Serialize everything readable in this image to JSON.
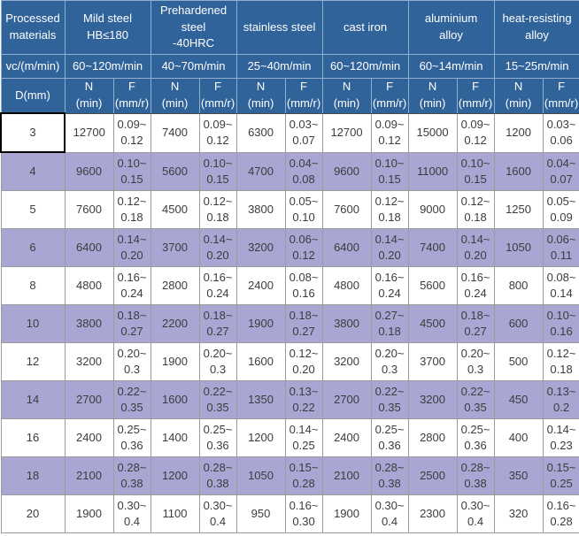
{
  "chart_data": {
    "type": "table",
    "corner": {
      "materials_label": "Processed\nmaterials",
      "vc_label": "vc/(m/min)",
      "d_label": "D(mm)"
    },
    "materials": [
      {
        "name": "Mild steel\nHB≤180",
        "vc": "60~120m/min",
        "n_label": "N\n(min)",
        "f_label": "F\n(mm/r)"
      },
      {
        "name": "Prehardened\nsteel\n-40HRC",
        "vc": "40~70m/min",
        "n_label": "N\n(min)",
        "f_label": "F\n(mm/r)"
      },
      {
        "name": "stainless steel",
        "vc": "25~40m/min",
        "n_label": "N\n(min)",
        "f_label": "F\n(mm/r)"
      },
      {
        "name": "cast iron",
        "vc": "60~120m/min",
        "n_label": "N\n(min)",
        "f_label": "F\n(mm/r)"
      },
      {
        "name": "aluminium\nalloy",
        "vc": "60~14m/min",
        "n_label": "N\n(min)",
        "f_label": "F\n(mm/r)"
      },
      {
        "name": "heat-resisting\nalloy",
        "vc": "15~25m/min",
        "n_label": "N\n(min)",
        "f_label": "F\n(mm/r)"
      }
    ],
    "rows": [
      {
        "d": "3",
        "values": [
          "12700",
          "0.09~\n0.12",
          "7400",
          "0.09~\n0.12",
          "6300",
          "0.03~\n0.07",
          "12700",
          "0.09~\n0.12",
          "15000",
          "0.09~\n0.12",
          "1200",
          "0.03~\n0.06"
        ]
      },
      {
        "d": "4",
        "values": [
          "9600",
          "0.10~\n0.15",
          "5600",
          "0.10~\n0.15",
          "4700",
          "0.04~\n0.08",
          "9600",
          "0.10~\n0.15",
          "11000",
          "0.10~\n0.15",
          "1600",
          "0.04~\n0.07"
        ]
      },
      {
        "d": "5",
        "values": [
          "7600",
          "0.12~\n0.18",
          "4500",
          "0.12~\n0.18",
          "3800",
          "0.05~\n0.10",
          "7600",
          "0.12~\n0.18",
          "9000",
          "0.12~\n0.18",
          "1250",
          "0.05~\n0.09"
        ]
      },
      {
        "d": "6",
        "values": [
          "6400",
          "0.14~\n0.20",
          "3700",
          "0.14~\n0.20",
          "3200",
          "0.06~\n0.12",
          "6400",
          "0.14~\n0.20",
          "7400",
          "0.14~\n0.20",
          "1050",
          "0.06~\n0.11"
        ]
      },
      {
        "d": "8",
        "values": [
          "4800",
          "0.16~\n0.24",
          "2800",
          "0.16~\n0.24",
          "2400",
          "0.08~\n0.16",
          "4800",
          "0.16~\n0.24",
          "5600",
          "0.16~\n0.24",
          "800",
          "0.08~\n0.14"
        ]
      },
      {
        "d": "10",
        "values": [
          "3800",
          "0.18~\n0.27",
          "2200",
          "0.18~\n0.27",
          "1900",
          "0.18~\n0.27",
          "3800",
          "0.27~\n0.18",
          "4500",
          "0.18~\n0.27",
          "600",
          "0.10~\n0.16"
        ]
      },
      {
        "d": "12",
        "values": [
          "3200",
          "0.20~\n0.3",
          "1900",
          "0.20~\n0.3",
          "1600",
          "0.12~\n0.20",
          "3200",
          "0.20~\n0.3",
          "3700",
          "0.20~\n0.3",
          "500",
          "0.12~\n0.18"
        ]
      },
      {
        "d": "14",
        "values": [
          "2700",
          "0.22~\n0.35",
          "1600",
          "0.22~\n0.35",
          "1350",
          "0.13~\n0.22",
          "2700",
          "0.22~\n0.35",
          "3200",
          "0.22~\n0.35",
          "450",
          "0.13~\n0.2"
        ]
      },
      {
        "d": "16",
        "values": [
          "2400",
          "0.25~\n0.36",
          "1400",
          "0.25~\n0.36",
          "1200",
          "0.14~\n0.25",
          "2400",
          "0.25~\n0.36",
          "2800",
          "0.25~\n0.36",
          "400",
          "0.14~\n0.23"
        ]
      },
      {
        "d": "18",
        "values": [
          "2100",
          "0.28~\n0.38",
          "1200",
          "0.28~\n0.38",
          "1050",
          "0.15~\n0.28",
          "2100",
          "0.28~\n0.38",
          "2500",
          "0.28~\n0.38",
          "350",
          "0.15~\n0.25"
        ]
      },
      {
        "d": "20",
        "values": [
          "1900",
          "0.30~\n0.4",
          "1100",
          "0.30~\n0.4",
          "950",
          "0.16~\n0.30",
          "1900",
          "0.30~\n0.4",
          "2300",
          "0.30~\n0.4",
          "320",
          "0.16~\n0.28"
        ]
      }
    ]
  },
  "colors": {
    "header_bg": "#31639B",
    "header_text": "#FFFFFF",
    "alt_row_bg": "#A9A6D3",
    "body_text": "#3C3C3C",
    "grid": "#9B9B9B"
  }
}
